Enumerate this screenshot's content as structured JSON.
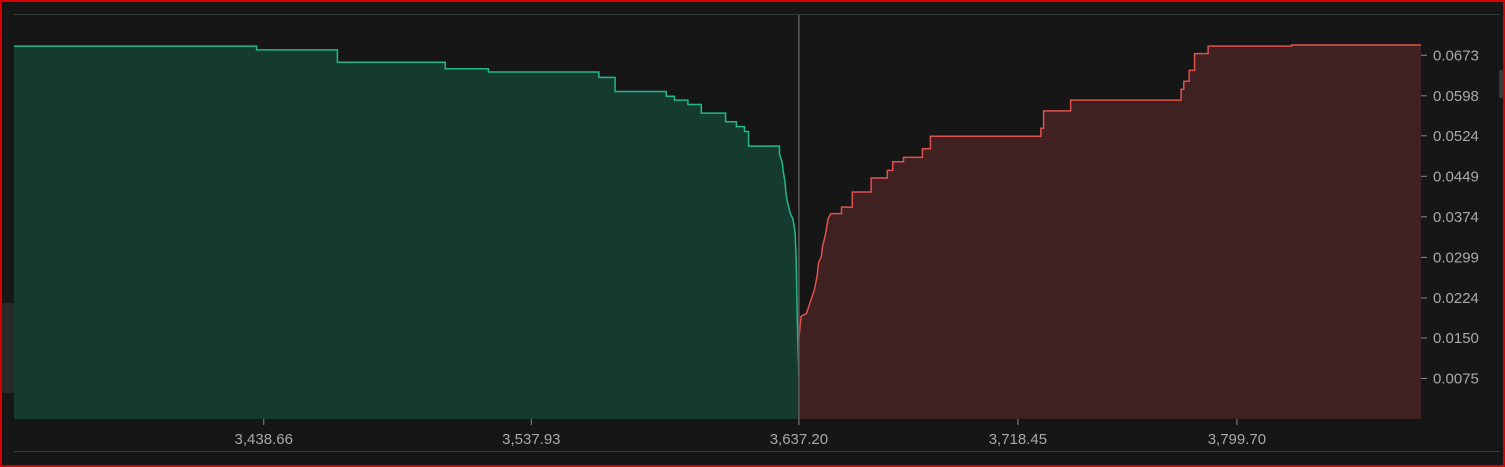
{
  "chart_data": {
    "type": "area",
    "title": "",
    "xlabel": "",
    "ylabel": "",
    "mid_price": "3,637.20",
    "x_ticks": [
      "3,438.66",
      "3,537.93",
      "3,637.20",
      "3,718.45",
      "3,799.70"
    ],
    "x_tick_values": [
      3438.66,
      3537.93,
      3637.2,
      3718.45,
      3799.7
    ],
    "y_ticks": [
      "0.0673",
      "0.0598",
      "0.0524",
      "0.0449",
      "0.0374",
      "0.0299",
      "0.0224",
      "0.0150",
      "0.0075"
    ],
    "y_tick_values": [
      0.0673,
      0.0598,
      0.0524,
      0.0449,
      0.0374,
      0.0299,
      0.0224,
      0.015,
      0.0075
    ],
    "xlim": [
      3346.0,
      3868.0
    ],
    "ylim": [
      0,
      0.0692
    ],
    "series": [
      {
        "name": "",
        "side": "bids",
        "line_color": "#1fb98a",
        "fill_color": "#153a2f",
        "points": [
          [
            3346.0,
            0.069
          ],
          [
            3436.0,
            0.069
          ],
          [
            3436.0,
            0.0683
          ],
          [
            3466.0,
            0.0683
          ],
          [
            3466.0,
            0.066
          ],
          [
            3506.0,
            0.066
          ],
          [
            3506.0,
            0.0648
          ],
          [
            3522.0,
            0.0648
          ],
          [
            3522.0,
            0.0642
          ],
          [
            3563.0,
            0.0642
          ],
          [
            3563.0,
            0.0632
          ],
          [
            3569.0,
            0.0632
          ],
          [
            3569.0,
            0.0606
          ],
          [
            3588.0,
            0.0606
          ],
          [
            3588.0,
            0.0597
          ],
          [
            3591.0,
            0.0597
          ],
          [
            3591.0,
            0.059
          ],
          [
            3596.0,
            0.059
          ],
          [
            3596.0,
            0.0582
          ],
          [
            3601.0,
            0.0582
          ],
          [
            3601.0,
            0.0566
          ],
          [
            3610.0,
            0.0566
          ],
          [
            3610.0,
            0.055
          ],
          [
            3614.0,
            0.055
          ],
          [
            3614.0,
            0.0541
          ],
          [
            3617.0,
            0.0541
          ],
          [
            3617.0,
            0.0532
          ],
          [
            3618.5,
            0.0532
          ],
          [
            3618.5,
            0.0505
          ],
          [
            3630.0,
            0.0505
          ],
          [
            3630.0,
            0.049
          ],
          [
            3631.0,
            0.0475
          ],
          [
            3631.5,
            0.0455
          ],
          [
            3632.0,
            0.044
          ],
          [
            3632.5,
            0.0415
          ],
          [
            3633.0,
            0.04
          ],
          [
            3634.0,
            0.038
          ],
          [
            3635.0,
            0.037
          ],
          [
            3635.8,
            0.0345
          ],
          [
            3636.2,
            0.0295
          ],
          [
            3636.6,
            0.018
          ],
          [
            3637.2,
            0.008
          ],
          [
            3637.2,
            0.0
          ]
        ]
      },
      {
        "name": "",
        "side": "asks",
        "line_color": "#e0524e",
        "fill_color": "#3f2121",
        "points": [
          [
            3637.2,
            0.0
          ],
          [
            3637.2,
            0.015
          ],
          [
            3638.0,
            0.019
          ],
          [
            3640.0,
            0.0195
          ],
          [
            3641.0,
            0.021
          ],
          [
            3642.0,
            0.0225
          ],
          [
            3643.0,
            0.024
          ],
          [
            3644.0,
            0.0265
          ],
          [
            3644.5,
            0.029
          ],
          [
            3645.5,
            0.03
          ],
          [
            3646.0,
            0.032
          ],
          [
            3647.0,
            0.034
          ],
          [
            3647.5,
            0.0355
          ],
          [
            3648.0,
            0.037
          ],
          [
            3649.0,
            0.038
          ],
          [
            3653.0,
            0.038
          ],
          [
            3653.0,
            0.0392
          ],
          [
            3657.0,
            0.0392
          ],
          [
            3657.0,
            0.042
          ],
          [
            3664.0,
            0.042
          ],
          [
            3664.0,
            0.0446
          ],
          [
            3670.0,
            0.0446
          ],
          [
            3670.0,
            0.046
          ],
          [
            3672.0,
            0.046
          ],
          [
            3672.0,
            0.0476
          ],
          [
            3676.0,
            0.0476
          ],
          [
            3676.0,
            0.0484
          ],
          [
            3683.0,
            0.0484
          ],
          [
            3683.0,
            0.05
          ],
          [
            3686.0,
            0.05
          ],
          [
            3686.0,
            0.0523
          ],
          [
            3727.0,
            0.0523
          ],
          [
            3727.0,
            0.0538
          ],
          [
            3728.0,
            0.0538
          ],
          [
            3728.0,
            0.057
          ],
          [
            3738.0,
            0.057
          ],
          [
            3738.0,
            0.059
          ],
          [
            3779.0,
            0.059
          ],
          [
            3779.0,
            0.061
          ],
          [
            3780.0,
            0.061
          ],
          [
            3780.0,
            0.0625
          ],
          [
            3782.0,
            0.0625
          ],
          [
            3782.0,
            0.0645
          ],
          [
            3784.0,
            0.0645
          ],
          [
            3784.0,
            0.0676
          ],
          [
            3789.0,
            0.0676
          ],
          [
            3789.0,
            0.069
          ],
          [
            3820.0,
            0.069
          ],
          [
            3820.0,
            0.0692
          ],
          [
            3868.0,
            0.0692
          ],
          [
            3868.0,
            0.0
          ]
        ]
      }
    ],
    "grid": false,
    "legend": "none"
  }
}
